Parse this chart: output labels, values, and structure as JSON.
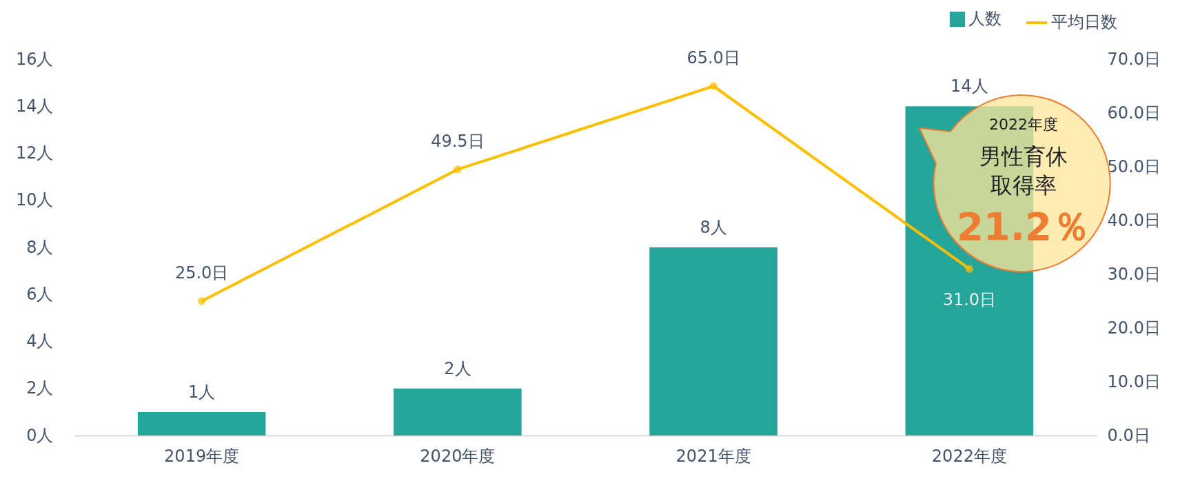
{
  "chart_data": {
    "type": "bar",
    "categories": [
      "2019年度",
      "2020年度",
      "2021年度",
      "2022年度"
    ],
    "series": [
      {
        "name": "人数",
        "color": "#26a69a",
        "values": [
          1,
          2,
          8,
          14
        ],
        "value_labels": [
          "1人",
          "2人",
          "8人",
          "14人"
        ]
      },
      {
        "name": "平均日数",
        "type": "line",
        "axis": "y2",
        "color": "#fcbf00",
        "values": [
          25.0,
          49.5,
          65.0,
          31.0
        ],
        "value_labels": [
          "25.0日",
          "49.5日",
          "65.0日",
          "31.0日"
        ]
      }
    ],
    "ylim": [
      0,
      16
    ],
    "yticks": [
      {
        "value": 0,
        "label": "0人"
      },
      {
        "value": 2,
        "label": "2人"
      },
      {
        "value": 4,
        "label": "4人"
      },
      {
        "value": 6,
        "label": "6人"
      },
      {
        "value": 8,
        "label": "8人"
      },
      {
        "value": 10,
        "label": "10人"
      },
      {
        "value": 12,
        "label": "12人"
      },
      {
        "value": 14,
        "label": "14人"
      },
      {
        "value": 16,
        "label": "16人"
      }
    ],
    "y2lim": [
      0,
      70
    ],
    "y2ticks": [
      {
        "value": 0,
        "label": "0.0日"
      },
      {
        "value": 10,
        "label": "10.0日"
      },
      {
        "value": 20,
        "label": "20.0日"
      },
      {
        "value": 30,
        "label": "30.0日"
      },
      {
        "value": 40,
        "label": "40.0日"
      },
      {
        "value": 50,
        "label": "50.0日"
      },
      {
        "value": 60,
        "label": "60.0日"
      },
      {
        "value": 70,
        "label": "70.0日"
      }
    ],
    "marker": "circle",
    "legend": "top right",
    "grid": false,
    "annotations": [
      "2022年度",
      "男性育休",
      "取得率",
      "21.2％"
    ]
  }
}
